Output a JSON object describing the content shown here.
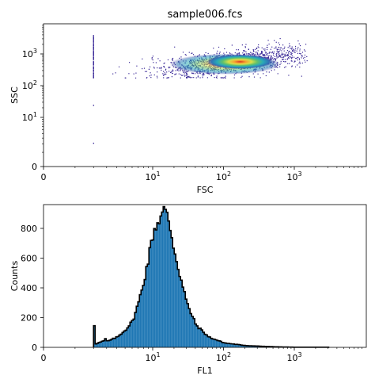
{
  "chart_data": [
    {
      "type": "scatter",
      "title": "sample006.fcs",
      "xlabel": "FSC",
      "ylabel": "SSC",
      "x_scale": "log",
      "y_scale": "log",
      "x_ticks": [
        {
          "value": 0,
          "label": "0"
        },
        {
          "value": 10,
          "label": "10",
          "exp": "1"
        },
        {
          "value": 100,
          "label": "10",
          "exp": "2"
        },
        {
          "value": 1000,
          "label": "10",
          "exp": "3"
        }
      ],
      "y_ticks": [
        {
          "value": 0,
          "label": "0"
        },
        {
          "value": 10,
          "label": "10",
          "exp": "1"
        },
        {
          "value": 100,
          "label": "10",
          "exp": "2"
        },
        {
          "value": 1000,
          "label": "10",
          "exp": "3"
        }
      ],
      "xlim": [
        0,
        7500
      ],
      "ylim": [
        0,
        6000
      ],
      "density_peak": {
        "fsc": 200,
        "ssc": 600
      },
      "population": {
        "fsc_range": [
          2.2,
          1500
        ],
        "ssc_range": [
          180,
          3500
        ]
      },
      "edge_events": {
        "fsc": 2,
        "ssc_range": [
          180,
          4000
        ]
      },
      "colormap": [
        "#3b2a98",
        "#2f74b5",
        "#29a9b8",
        "#63c26a",
        "#d6e04a",
        "#f7a431",
        "#d7301f"
      ]
    },
    {
      "type": "bar",
      "xlabel": "FL1",
      "ylabel": "Counts",
      "x_scale": "log",
      "x_ticks": [
        {
          "value": 0,
          "label": "0"
        },
        {
          "value": 10,
          "label": "10",
          "exp": "1"
        },
        {
          "value": 100,
          "label": "10",
          "exp": "2"
        },
        {
          "value": 1000,
          "label": "10",
          "exp": "3"
        }
      ],
      "y_ticks": [
        0,
        200,
        400,
        600,
        800
      ],
      "ylim": [
        0,
        960
      ],
      "xlim": [
        0,
        7500
      ],
      "bar_color": "#1f77b4",
      "outline_color": "#000000",
      "series": [
        {
          "x": [
            2,
            3,
            4,
            5,
            6,
            7,
            8,
            9,
            10,
            12,
            14,
            16,
            18,
            20,
            25,
            30,
            40,
            60,
            100,
            200,
            500,
            1000
          ],
          "values": [
            150,
            40,
            70,
            120,
            180,
            310,
            460,
            620,
            780,
            860,
            920,
            880,
            760,
            640,
            440,
            290,
            150,
            70,
            30,
            12,
            4,
            1
          ]
        }
      ]
    }
  ]
}
